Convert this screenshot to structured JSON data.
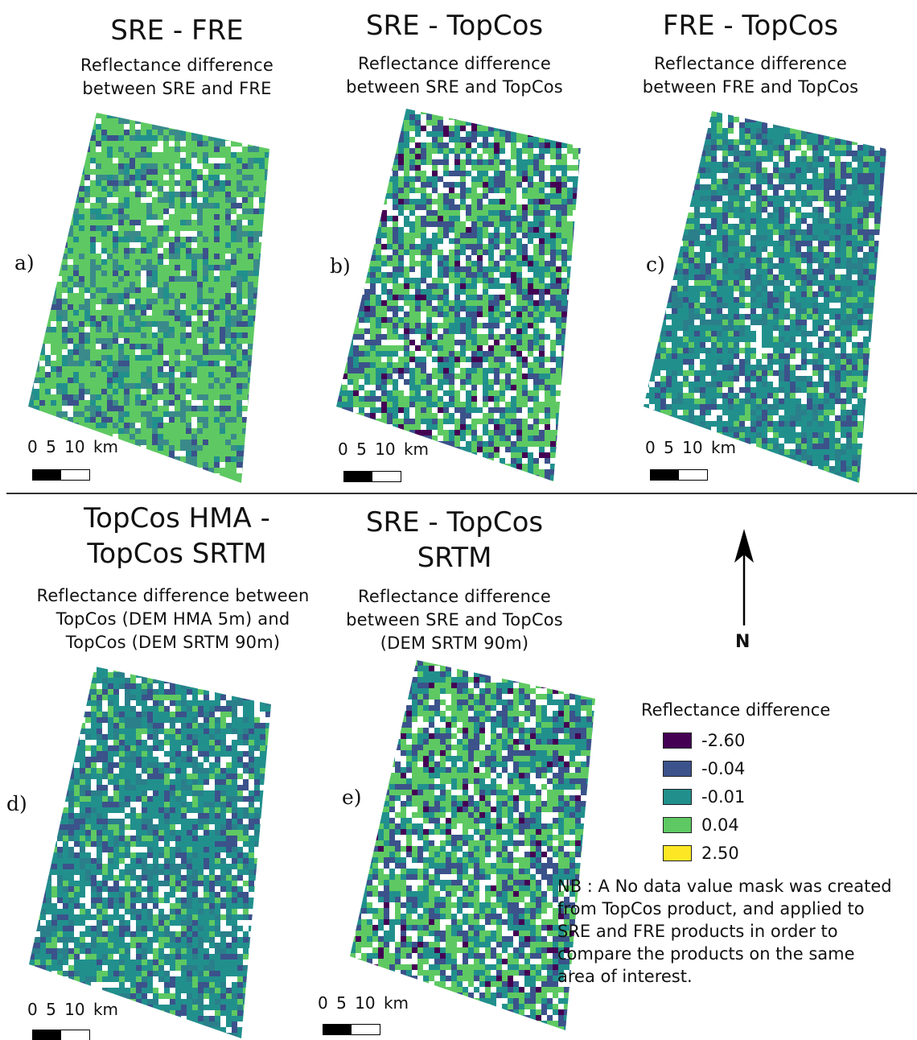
{
  "panels": [
    {
      "id": "a",
      "label": "a)",
      "title": "SRE - FRE",
      "subtitle": "Reflectance difference\nbetween SRE and FRE",
      "scale_text": "0  5  10 km",
      "tint": "green"
    },
    {
      "id": "b",
      "label": "b)",
      "title": "SRE - TopCos",
      "subtitle": "Reflectance difference\nbetween SRE and TopCos",
      "scale_text": "0  5  10 km",
      "tint": "mixed"
    },
    {
      "id": "c",
      "label": "c)",
      "title": "FRE - TopCos",
      "subtitle": "Reflectance difference\nbetween FRE and TopCos",
      "scale_text": "0  5  10 km",
      "tint": "teal"
    },
    {
      "id": "d",
      "label": "d)",
      "title": "TopCos HMA -\nTopCos SRTM",
      "subtitle": "Reflectance difference between\nTopCos (DEM HMA 5m) and\nTopCos (DEM SRTM 90m)",
      "scale_text": "0  5  10 km",
      "tint": "teal"
    },
    {
      "id": "e",
      "label": "e)",
      "title": "SRE - TopCos\nSRTM",
      "subtitle": "Reflectance difference\nbetween SRE and TopCos\n(DEM SRTM 90m)",
      "scale_text": "0  5  10 km",
      "tint": "mixed"
    }
  ],
  "legend": {
    "title": "Reflectance difference",
    "items": [
      {
        "value": "-2.60",
        "color": "#440154"
      },
      {
        "value": "-0.04",
        "color": "#3b528b"
      },
      {
        "value": "-0.01",
        "color": "#21908d"
      },
      {
        "value": "0.04",
        "color": "#5ec962"
      },
      {
        "value": "2.50",
        "color": "#fde725"
      }
    ]
  },
  "north_label": "N",
  "note": "NB : A No data value mask was created\nfrom TopCos product, and applied to\nSRE and FRE products in order to\ncompare the products on the same\narea of interest."
}
